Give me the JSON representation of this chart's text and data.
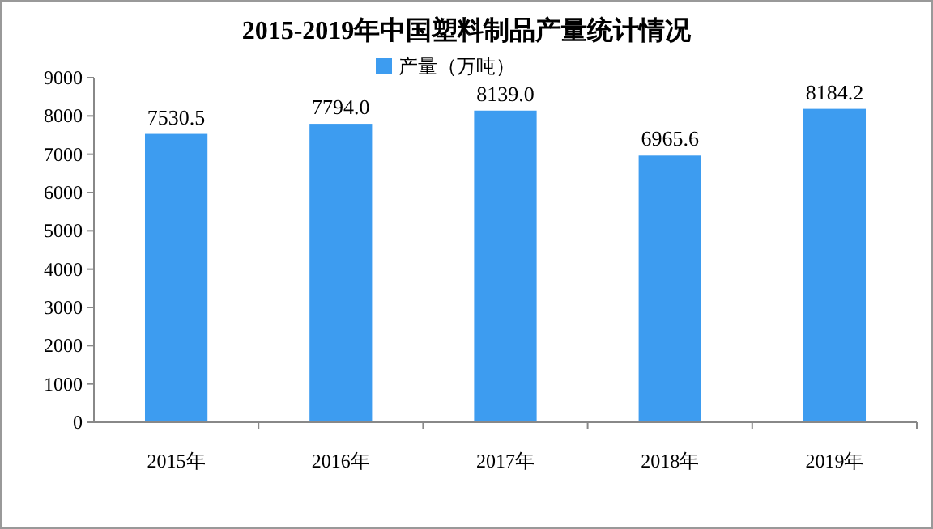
{
  "chart_data": {
    "type": "bar",
    "title": "2015-2019年中国塑料制品产量统计情况",
    "categories": [
      "2015年",
      "2016年",
      "2017年",
      "2018年",
      "2019年"
    ],
    "series": [
      {
        "name": "产量（万吨）",
        "color": "#3d9cf0",
        "values": [
          7530.5,
          7794.0,
          8139.0,
          6965.6,
          8184.2
        ],
        "value_labels": [
          "7530.5",
          "7794.0",
          "8139.0",
          "6965.6",
          "8184.2"
        ]
      }
    ],
    "ylim": [
      0,
      9000
    ],
    "yticks": [
      0,
      1000,
      2000,
      3000,
      4000,
      5000,
      6000,
      7000,
      8000,
      9000
    ],
    "legend": "top",
    "grid": false
  }
}
